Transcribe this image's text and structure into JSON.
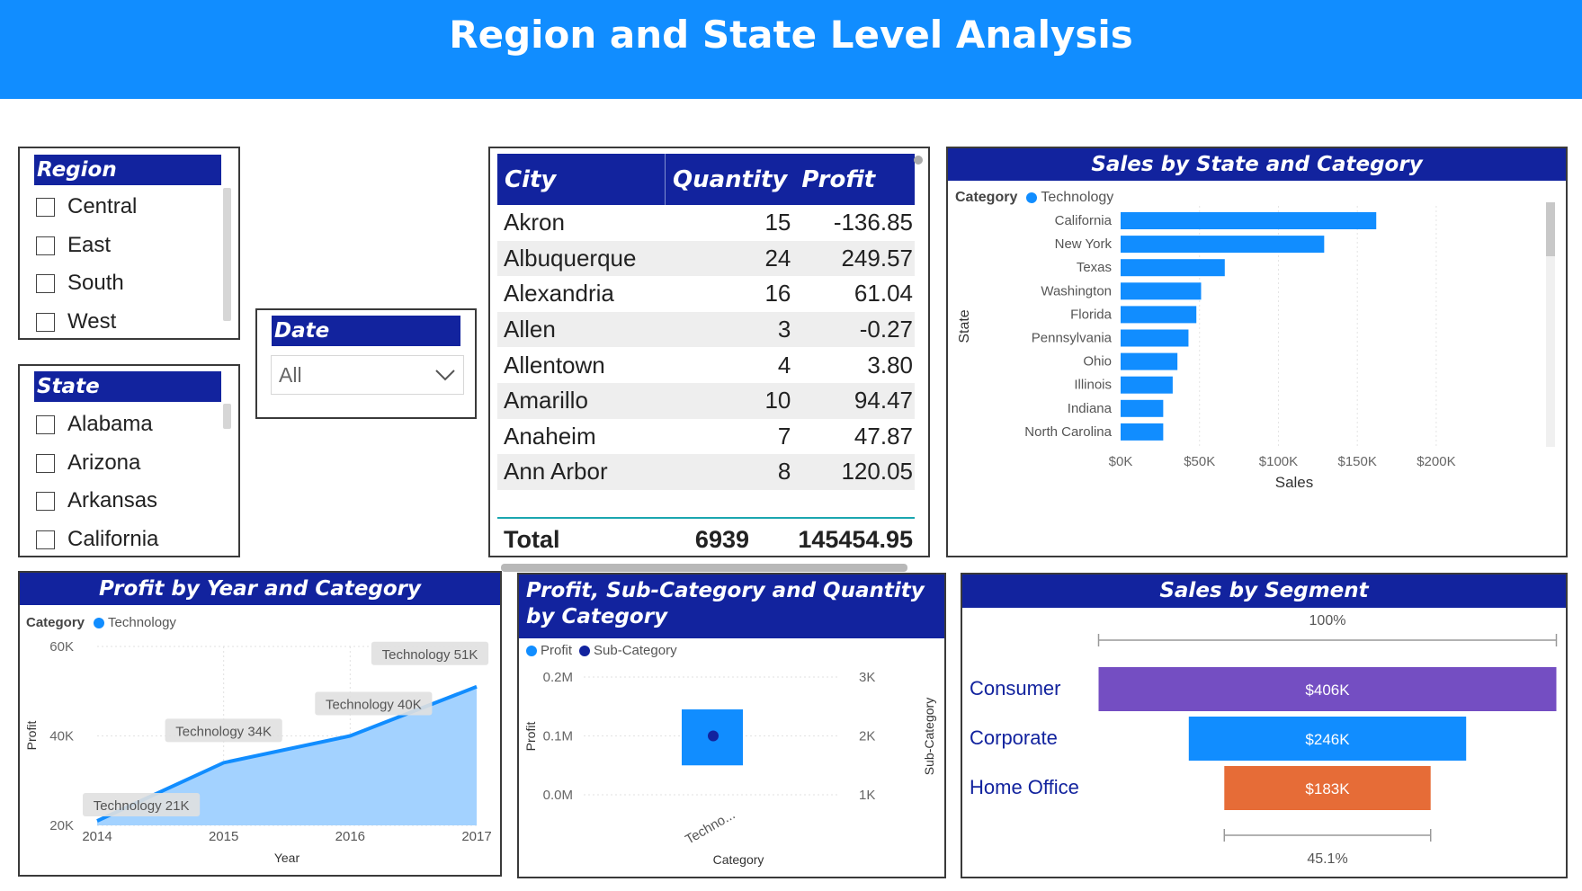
{
  "page": {
    "title": "Region and State Level Analysis"
  },
  "region_slicer": {
    "title": "Region",
    "items": [
      "Central",
      "East",
      "South",
      "West"
    ]
  },
  "state_slicer": {
    "title": "State",
    "items": [
      "Alabama",
      "Arizona",
      "Arkansas",
      "California"
    ]
  },
  "date_slicer": {
    "title": "Date",
    "value": "All"
  },
  "city_table": {
    "columns": [
      "City",
      "Quantity",
      "Profit"
    ],
    "rows": [
      [
        "Akron",
        "15",
        "-136.85"
      ],
      [
        "Albuquerque",
        "24",
        "249.57"
      ],
      [
        "Alexandria",
        "16",
        "61.04"
      ],
      [
        "Allen",
        "3",
        "-0.27"
      ],
      [
        "Allentown",
        "4",
        "3.80"
      ],
      [
        "Amarillo",
        "10",
        "94.47"
      ],
      [
        "Anaheim",
        "7",
        "47.87"
      ],
      [
        "Ann Arbor",
        "8",
        "120.05"
      ]
    ],
    "total": {
      "label": "Total",
      "quantity": "6939",
      "profit": "145454.95"
    }
  },
  "colors": {
    "header": "#118DFF",
    "title_bar": "#12239E",
    "technology": "#118DFF",
    "sub_category": "#12239E",
    "consumer": "#744EC2",
    "corporate": "#118DFF",
    "home_office": "#E66C37"
  },
  "chart_data": [
    {
      "type": "bar",
      "orientation": "horizontal",
      "title": "Sales by State and Category",
      "legend": {
        "title": "Category",
        "entries": [
          "Technology"
        ],
        "placement": "top-left"
      },
      "xlabel": "Sales",
      "ylabel": "State",
      "xlim": [
        0,
        220000
      ],
      "xticks": [
        "$0K",
        "$50K",
        "$100K",
        "$150K",
        "$200K"
      ],
      "grid": true,
      "categories": [
        "California",
        "New York",
        "Texas",
        "Washington",
        "Florida",
        "Pennsylvania",
        "Ohio",
        "Illinois",
        "Indiana",
        "North Carolina"
      ],
      "series": [
        {
          "name": "Technology",
          "values": [
            162000,
            129000,
            66000,
            51000,
            48000,
            43000,
            36000,
            33000,
            27000,
            27000
          ]
        }
      ]
    },
    {
      "type": "area",
      "title": "Profit by Year and Category",
      "legend": {
        "title": "Category",
        "entries": [
          "Technology"
        ],
        "placement": "top-left"
      },
      "xlabel": "Year",
      "ylabel": "Profit",
      "ylim": [
        20000,
        60000
      ],
      "yticks": [
        "20K",
        "40K",
        "60K"
      ],
      "grid": true,
      "x": [
        "2014",
        "2015",
        "2016",
        "2017"
      ],
      "series": [
        {
          "name": "Technology",
          "values": [
            21000,
            34000,
            40000,
            51000
          ]
        }
      ],
      "data_labels": [
        "Technology 21K",
        "Technology 34K",
        "Technology 40K",
        "Technology 51K"
      ]
    },
    {
      "type": "bar",
      "title": "Profit, Sub-Category and Quantity by Category",
      "legend": {
        "entries": [
          "Profit",
          "Sub-Category"
        ],
        "placement": "top-left"
      },
      "xlabel": "Category",
      "ylabel": "Profit",
      "y2label": "Sub-Category",
      "ylim": [
        0,
        0.2
      ],
      "yticks": [
        "0.0M",
        "0.1M",
        "0.2M"
      ],
      "y2lim": [
        1,
        3
      ],
      "y2ticks": [
        "1K",
        "2K",
        "3K"
      ],
      "grid": true,
      "categories": [
        "Techno..."
      ],
      "series": [
        {
          "name": "Profit",
          "values": [
            0.145
          ]
        },
        {
          "name": "Sub-Category",
          "values": [
            2.0
          ]
        }
      ]
    },
    {
      "type": "funnel",
      "title": "Sales by Segment",
      "categories": [
        "Consumer",
        "Corporate",
        "Home Office"
      ],
      "values": [
        406,
        246,
        183
      ],
      "value_labels": [
        "$406K",
        "$246K",
        "$183K"
      ],
      "top_percent": "100%",
      "bottom_percent": "45.1%"
    }
  ]
}
